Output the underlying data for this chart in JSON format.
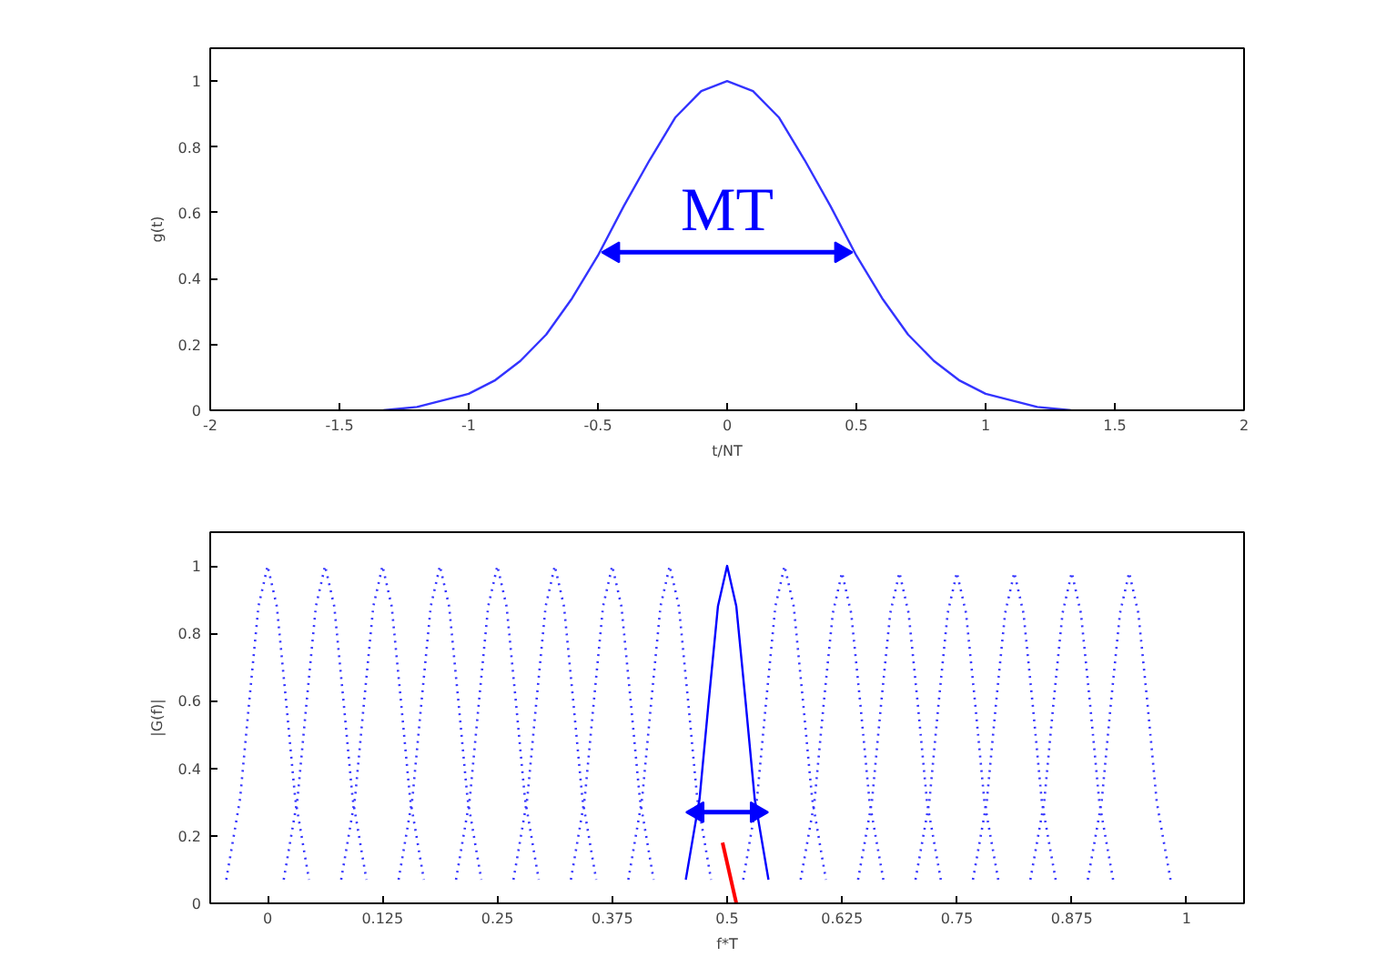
{
  "chart_data": [
    {
      "type": "line",
      "xlabel": "t/NT",
      "ylabel": "g(t)",
      "xlim": [
        -2,
        2
      ],
      "ylim": [
        0,
        1.1
      ],
      "xticks": [
        -2,
        -1.5,
        -1,
        -0.5,
        0,
        0.5,
        1,
        1.5,
        2
      ],
      "yticks": [
        0,
        0.2,
        0.4,
        0.6,
        0.8,
        1
      ],
      "grid": false,
      "series": [
        {
          "color": "#3333ff",
          "line_style": "solid",
          "x": [
            -1.33,
            -1.2,
            -1.1,
            -1.0,
            -0.9,
            -0.8,
            -0.7,
            -0.6,
            -0.5,
            -0.4,
            -0.3,
            -0.2,
            -0.1,
            0,
            0.1,
            0.2,
            0.3,
            0.4,
            0.5,
            0.6,
            0.7,
            0.8,
            0.9,
            1.0,
            1.1,
            1.2,
            1.33
          ],
          "values": [
            0,
            0.01,
            0.03,
            0.05,
            0.09,
            0.15,
            0.23,
            0.34,
            0.47,
            0.62,
            0.76,
            0.89,
            0.97,
            1,
            0.97,
            0.89,
            0.76,
            0.62,
            0.47,
            0.34,
            0.23,
            0.15,
            0.09,
            0.05,
            0.03,
            0.01,
            0
          ]
        },
        {
          "color": "#0000ff",
          "line_style": "solid",
          "marker": "triangle",
          "x": [
            -0.44,
            0.44
          ],
          "values": [
            0.48,
            0.48
          ]
        }
      ],
      "annotations": [
        "MT"
      ]
    },
    {
      "type": "line",
      "xlabel": "f*T",
      "ylabel": "|G(f)|",
      "xlim": [
        -0.0625,
        1.0625
      ],
      "ylim": [
        0,
        1.1
      ],
      "xticks": [
        0,
        0.125,
        0.25,
        0.375,
        0.5,
        0.625,
        0.75,
        0.875,
        1
      ],
      "yticks": [
        0,
        0.2,
        0.4,
        0.6,
        0.8,
        1
      ],
      "grid": false,
      "series": [
        {
          "color": "#3333ff",
          "line_style": "dotted",
          "x": [
            -0.045,
            -0.03,
            -0.02,
            -0.01,
            0,
            0.01,
            0.02,
            0.03,
            0.045
          ],
          "values": [
            0.07,
            0.31,
            0.6,
            0.88,
            1,
            0.88,
            0.6,
            0.31,
            0.07
          ]
        },
        {
          "color": "#3333ff",
          "line_style": "dotted",
          "x": [
            0.0175,
            0.0325,
            0.0425,
            0.0525,
            0.0625,
            0.0725,
            0.0825,
            0.0925,
            0.1075
          ],
          "values": [
            0.07,
            0.31,
            0.6,
            0.88,
            1,
            0.88,
            0.6,
            0.31,
            0.07
          ]
        },
        {
          "color": "#3333ff",
          "line_style": "dotted",
          "x": [
            0.08,
            0.095,
            0.105,
            0.115,
            0.125,
            0.135,
            0.145,
            0.155,
            0.17
          ],
          "values": [
            0.07,
            0.31,
            0.6,
            0.88,
            1,
            0.88,
            0.6,
            0.31,
            0.07
          ]
        },
        {
          "color": "#3333ff",
          "line_style": "dotted",
          "x": [
            0.1425,
            0.1575,
            0.1675,
            0.1775,
            0.1875,
            0.1975,
            0.2075,
            0.2175,
            0.2325
          ],
          "values": [
            0.07,
            0.31,
            0.6,
            0.88,
            1,
            0.88,
            0.6,
            0.31,
            0.07
          ]
        },
        {
          "color": "#3333ff",
          "line_style": "dotted",
          "x": [
            0.205,
            0.22,
            0.23,
            0.24,
            0.25,
            0.26,
            0.27,
            0.28,
            0.295
          ],
          "values": [
            0.07,
            0.31,
            0.6,
            0.88,
            1,
            0.88,
            0.6,
            0.31,
            0.07
          ]
        },
        {
          "color": "#3333ff",
          "line_style": "dotted",
          "x": [
            0.2675,
            0.2825,
            0.2925,
            0.3025,
            0.3125,
            0.3225,
            0.3325,
            0.3425,
            0.3575
          ],
          "values": [
            0.07,
            0.31,
            0.6,
            0.88,
            1,
            0.88,
            0.6,
            0.31,
            0.07
          ]
        },
        {
          "color": "#3333ff",
          "line_style": "dotted",
          "x": [
            0.33,
            0.345,
            0.355,
            0.365,
            0.375,
            0.385,
            0.395,
            0.405,
            0.42
          ],
          "values": [
            0.07,
            0.31,
            0.6,
            0.88,
            1,
            0.88,
            0.6,
            0.31,
            0.07
          ]
        },
        {
          "color": "#3333ff",
          "line_style": "dotted",
          "x": [
            0.3925,
            0.4075,
            0.4175,
            0.4275,
            0.4375,
            0.4475,
            0.4575,
            0.4675,
            0.4825
          ],
          "values": [
            0.07,
            0.31,
            0.6,
            0.88,
            1,
            0.88,
            0.6,
            0.31,
            0.07
          ]
        },
        {
          "color": "#0000ff",
          "line_style": "solid",
          "x": [
            0.455,
            0.47,
            0.48,
            0.49,
            0.5,
            0.51,
            0.52,
            0.53,
            0.545
          ],
          "values": [
            0.07,
            0.31,
            0.6,
            0.88,
            1,
            0.88,
            0.6,
            0.31,
            0.07
          ]
        },
        {
          "color": "#3333ff",
          "line_style": "dotted",
          "x": [
            0.5175,
            0.5325,
            0.5425,
            0.5525,
            0.5625,
            0.5725,
            0.5825,
            0.5925,
            0.6075
          ],
          "values": [
            0.07,
            0.31,
            0.6,
            0.88,
            1,
            0.88,
            0.6,
            0.31,
            0.07
          ]
        },
        {
          "color": "#3333ff",
          "line_style": "dotted",
          "x": [
            0.58,
            0.595,
            0.605,
            0.615,
            0.625,
            0.635,
            0.645,
            0.655,
            0.67
          ],
          "values": [
            0.07,
            0.3,
            0.59,
            0.86,
            0.98,
            0.86,
            0.59,
            0.3,
            0.07
          ]
        },
        {
          "color": "#3333ff",
          "line_style": "dotted",
          "x": [
            0.6425,
            0.6575,
            0.6675,
            0.6775,
            0.6875,
            0.6975,
            0.7075,
            0.7175,
            0.7325
          ],
          "values": [
            0.07,
            0.3,
            0.59,
            0.86,
            0.98,
            0.86,
            0.59,
            0.3,
            0.07
          ]
        },
        {
          "color": "#3333ff",
          "line_style": "dotted",
          "x": [
            0.705,
            0.72,
            0.73,
            0.74,
            0.75,
            0.76,
            0.77,
            0.78,
            0.795
          ],
          "values": [
            0.07,
            0.3,
            0.59,
            0.86,
            0.98,
            0.86,
            0.59,
            0.3,
            0.07
          ]
        },
        {
          "color": "#3333ff",
          "line_style": "dotted",
          "x": [
            0.7675,
            0.7825,
            0.7925,
            0.8025,
            0.8125,
            0.8225,
            0.8325,
            0.8425,
            0.8575
          ],
          "values": [
            0.07,
            0.3,
            0.59,
            0.86,
            0.98,
            0.86,
            0.59,
            0.3,
            0.07
          ]
        },
        {
          "color": "#3333ff",
          "line_style": "dotted",
          "x": [
            0.83,
            0.845,
            0.855,
            0.865,
            0.875,
            0.885,
            0.895,
            0.905,
            0.92
          ],
          "values": [
            0.07,
            0.3,
            0.59,
            0.86,
            0.98,
            0.86,
            0.59,
            0.3,
            0.07
          ]
        },
        {
          "color": "#3333ff",
          "line_style": "dotted",
          "x": [
            0.8925,
            0.9075,
            0.9175,
            0.9275,
            0.9375,
            0.9475,
            0.9575,
            0.9675,
            0.9825
          ],
          "values": [
            0.07,
            0.3,
            0.59,
            0.86,
            0.98,
            0.86,
            0.59,
            0.3,
            0.07
          ]
        },
        {
          "color": "#0000ff",
          "line_style": "solid",
          "marker": "triangle",
          "x": [
            0.468,
            0.532
          ],
          "values": [
            0.27,
            0.27
          ]
        },
        {
          "color": "#ff0000",
          "line_style": "solid",
          "x": [
            0.495,
            0.51
          ],
          "values": [
            0.18,
            0
          ]
        }
      ]
    }
  ]
}
